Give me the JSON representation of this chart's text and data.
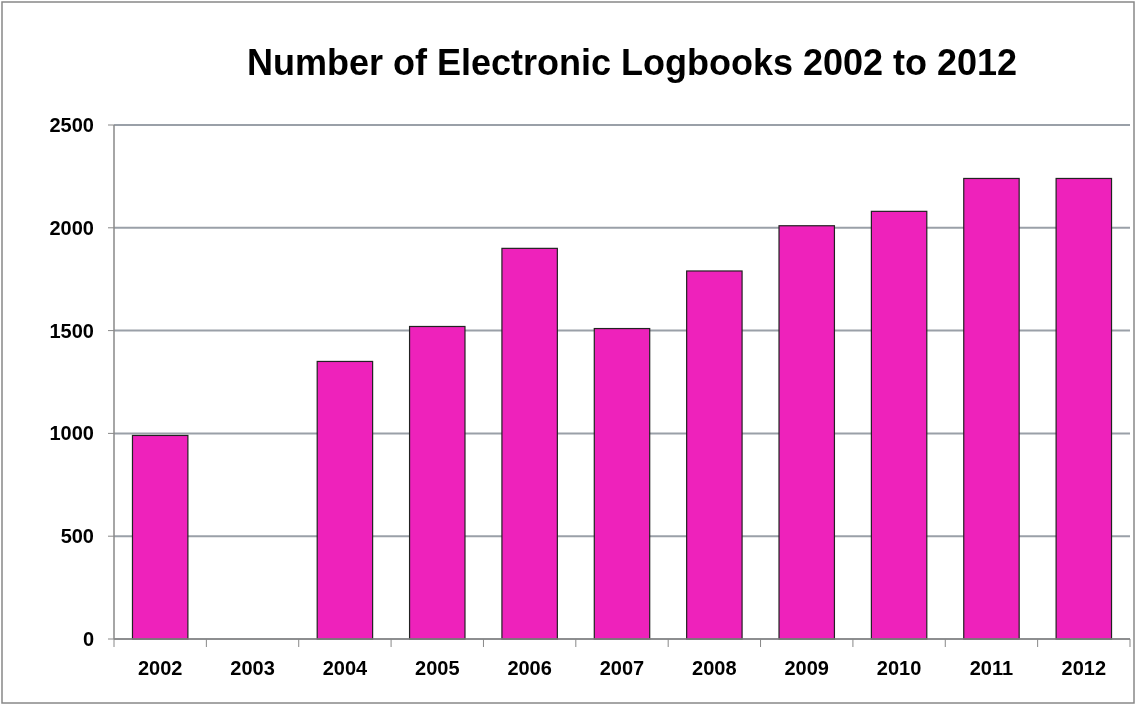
{
  "chart_data": {
    "type": "bar",
    "title": "Number of Electronic Logbooks 2002 to 2012",
    "categories": [
      "2002",
      "2003",
      "2004",
      "2005",
      "2006",
      "2007",
      "2008",
      "2009",
      "2010",
      "2011",
      "2012"
    ],
    "values": [
      990,
      null,
      1350,
      1520,
      1900,
      1510,
      1790,
      2010,
      2080,
      2240,
      2240
    ],
    "color": "#ee22bb",
    "ylim": [
      0,
      2500
    ],
    "yticks": [
      0,
      500,
      1000,
      1500,
      2000,
      2500
    ],
    "grid": "y"
  }
}
